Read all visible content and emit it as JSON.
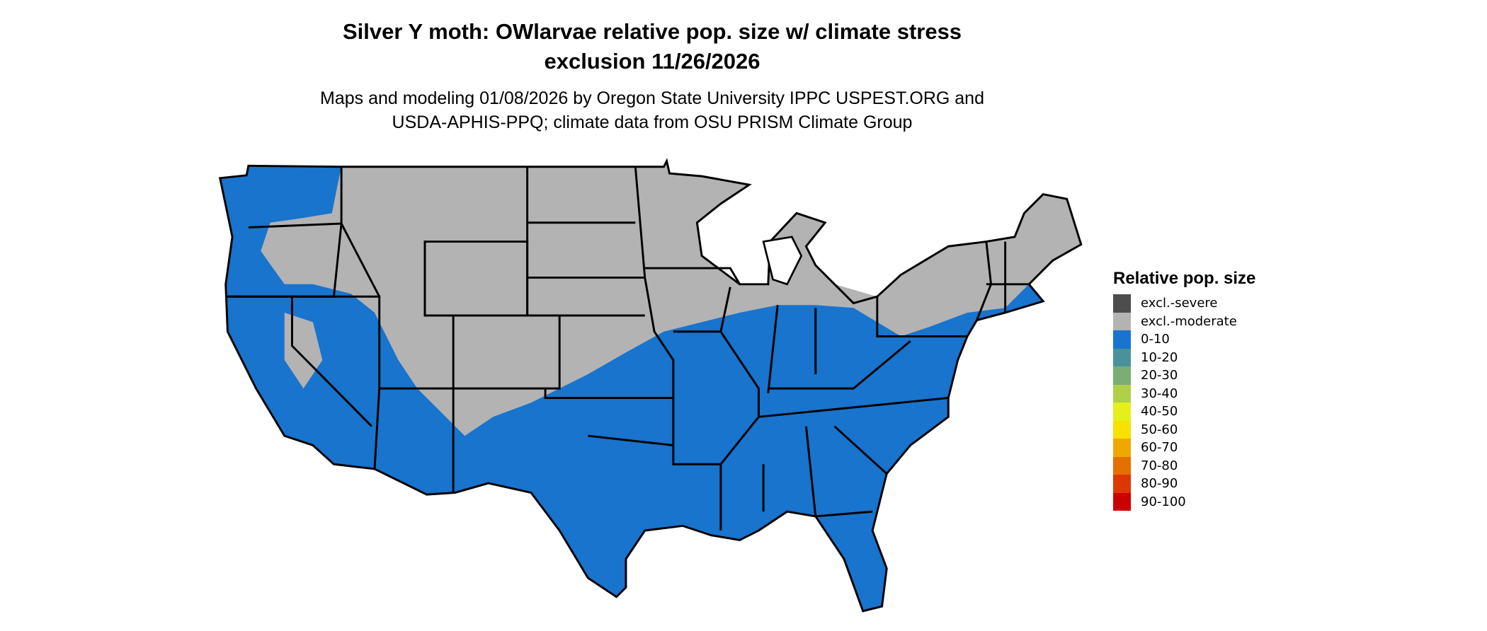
{
  "title": {
    "line1": "Silver Y moth: OWlarvae relative pop. size w/ climate stress",
    "line2": "exclusion 11/26/2026"
  },
  "subtitle": {
    "line1": "Maps and modeling 01/08/2026 by Oregon State University IPPC USPEST.ORG and",
    "line2": "USDA-APHIS-PPQ; climate data from OSU PRISM Climate Group"
  },
  "map": {
    "region": "Contiguous United States",
    "dominant_classes": [
      "0-10",
      "excl.-moderate"
    ]
  },
  "legend": {
    "title": "Relative pop. size",
    "items": [
      {
        "label": "excl.-severe",
        "color": "#4d4d4d"
      },
      {
        "label": "excl.-moderate",
        "color": "#b3b3b3"
      },
      {
        "label": "0-10",
        "color": "#1874cd"
      },
      {
        "label": "10-20",
        "color": "#4a929b"
      },
      {
        "label": "20-30",
        "color": "#7bae74"
      },
      {
        "label": "30-40",
        "color": "#b0d04a"
      },
      {
        "label": "40-50",
        "color": "#e5f01a"
      },
      {
        "label": "50-60",
        "color": "#f8e000"
      },
      {
        "label": "60-70",
        "color": "#f0a800"
      },
      {
        "label": "70-80",
        "color": "#e57000"
      },
      {
        "label": "80-90",
        "color": "#dc3800"
      },
      {
        "label": "90-100",
        "color": "#cd0000"
      }
    ]
  }
}
